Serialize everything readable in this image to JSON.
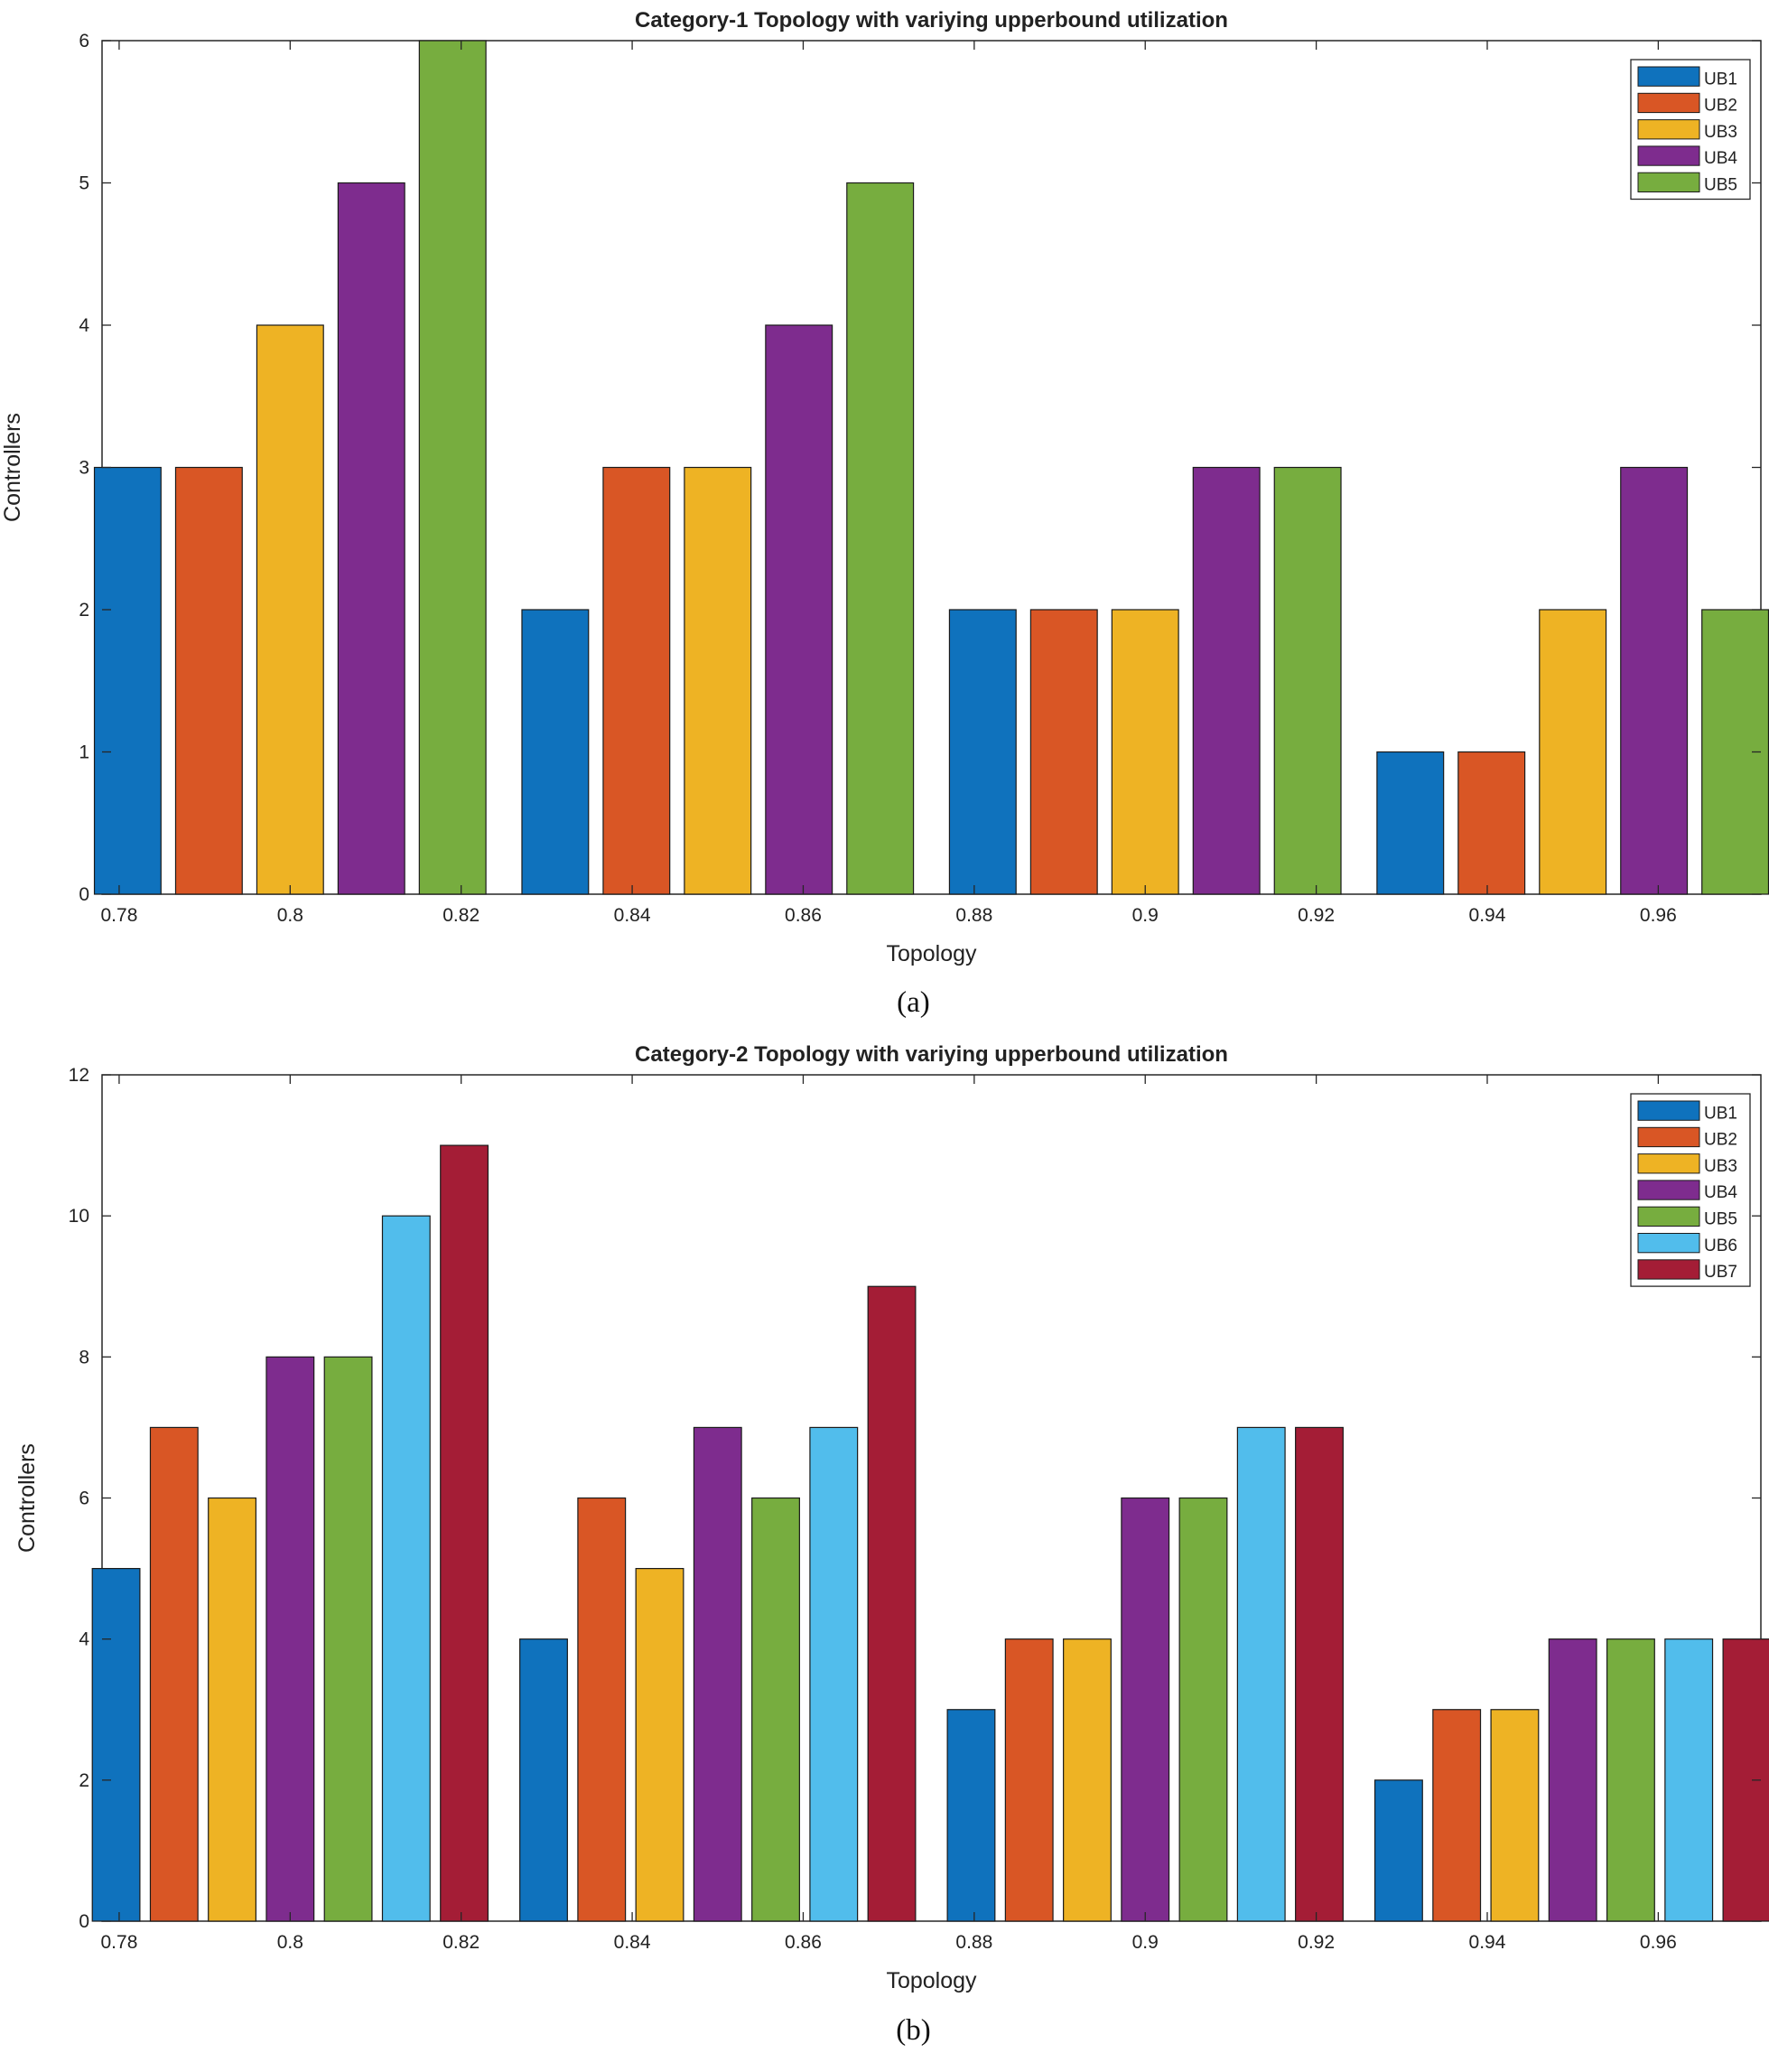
{
  "colors": {
    "UB1": "#0f72bd",
    "UB2": "#d95625",
    "UB3": "#eeb324",
    "UB4": "#7e2c8e",
    "UB5": "#77ad3f",
    "UB6": "#51bdec",
    "UB7": "#a41d36"
  },
  "chart_data": [
    {
      "type": "bar",
      "title": "Category-1 Topology with variying upperbound utilization",
      "caption": "(a)",
      "xlabel": "Topology",
      "ylabel": "Controllers",
      "xlim": [
        0.778,
        0.972
      ],
      "ylim": [
        0,
        6
      ],
      "xticks": [
        0.78,
        0.8,
        0.82,
        0.84,
        0.86,
        0.88,
        0.9,
        0.92,
        0.94,
        0.96
      ],
      "xtick_labels": [
        "0.78",
        "0.8",
        "0.82",
        "0.84",
        "0.86",
        "0.88",
        "0.9",
        "0.92",
        "0.94",
        "0.96"
      ],
      "yticks": [
        0,
        1,
        2,
        3,
        4,
        5,
        6
      ],
      "ytick_labels": [
        "0",
        "1",
        "2",
        "3",
        "4",
        "5",
        "6"
      ],
      "legend_position": "top-right",
      "group_centers": [
        0.8,
        0.85,
        0.9,
        0.95
      ],
      "series": [
        {
          "name": "UB1",
          "values": [
            3,
            2,
            2,
            1
          ]
        },
        {
          "name": "UB2",
          "values": [
            3,
            3,
            2,
            1
          ]
        },
        {
          "name": "UB3",
          "values": [
            4,
            3,
            2,
            2
          ]
        },
        {
          "name": "UB4",
          "values": [
            5,
            4,
            3,
            3
          ]
        },
        {
          "name": "UB5",
          "values": [
            6,
            5,
            3,
            2
          ]
        }
      ]
    },
    {
      "type": "bar",
      "title": "Category-2 Topology with variying upperbound utilization",
      "caption": "(b)",
      "xlabel": "Topology",
      "ylabel": "Controllers",
      "xlim": [
        0.778,
        0.972
      ],
      "ylim": [
        0,
        12
      ],
      "xticks": [
        0.78,
        0.8,
        0.82,
        0.84,
        0.86,
        0.88,
        0.9,
        0.92,
        0.94,
        0.96
      ],
      "xtick_labels": [
        "0.78",
        "0.8",
        "0.82",
        "0.84",
        "0.86",
        "0.88",
        "0.9",
        "0.92",
        "0.94",
        "0.96"
      ],
      "yticks": [
        0,
        2,
        4,
        6,
        8,
        10,
        12
      ],
      "ytick_labels": [
        "0",
        "2",
        "4",
        "6",
        "8",
        "10",
        "12"
      ],
      "legend_position": "top-right",
      "group_centers": [
        0.8,
        0.85,
        0.9,
        0.95
      ],
      "series": [
        {
          "name": "UB1",
          "values": [
            5,
            4,
            3,
            2
          ]
        },
        {
          "name": "UB2",
          "values": [
            7,
            6,
            4,
            3
          ]
        },
        {
          "name": "UB3",
          "values": [
            6,
            5,
            4,
            3
          ]
        },
        {
          "name": "UB4",
          "values": [
            8,
            7,
            6,
            4
          ]
        },
        {
          "name": "UB5",
          "values": [
            8,
            6,
            6,
            4
          ]
        },
        {
          "name": "UB6",
          "values": [
            10,
            7,
            7,
            4
          ]
        },
        {
          "name": "UB7",
          "values": [
            11,
            9,
            7,
            4
          ]
        }
      ]
    }
  ]
}
